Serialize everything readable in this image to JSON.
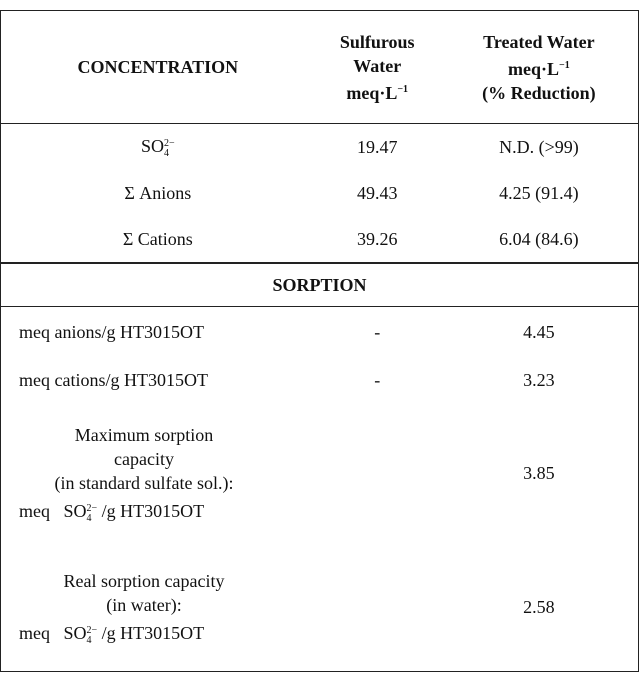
{
  "table": {
    "header": [
      {
        "lines": [
          "CONCENTRATION"
        ]
      },
      {
        "lines": [
          "Sulfurous",
          "Water"
        ],
        "unit": "meq·L",
        "unit_exp": "−1"
      },
      {
        "lines": [
          "Treated Water"
        ],
        "unit": "meq·L",
        "unit_exp": "−1",
        "note": "(% Reduction)"
      }
    ],
    "concentration_rows": [
      {
        "label": {
          "base": "SO",
          "sub": "4",
          "sup": "2−"
        },
        "sulfurous": 19.47,
        "treated": "N.D. (>99)"
      },
      {
        "label": "Σ Anions",
        "sulfurous": 49.43,
        "treated": "4.25 (91.4)"
      },
      {
        "label": "Σ Cations",
        "sulfurous": 39.26,
        "treated": "6.04 (84.6)"
      }
    ],
    "section": "SORPTION",
    "sorption_rows": [
      {
        "label": "meq anions/g HT3015OT",
        "sulfurous": "-",
        "treated": 4.45
      },
      {
        "label": "meq cations/g HT3015OT",
        "sulfurous": "-",
        "treated": 3.23
      },
      {
        "lines": [
          "Maximum sorption",
          "capacity",
          "(in standard sulfate sol.):"
        ],
        "prefix": "meq",
        "formula": {
          "base": "SO",
          "sub": "4",
          "sup": "2−"
        },
        "suffix": "/g HT3015OT",
        "treated": 3.85
      },
      {
        "lines": [
          "Real sorption capacity",
          "(in water):"
        ],
        "prefix": "meq",
        "formula": {
          "base": "SO",
          "sub": "4",
          "sup": "2−"
        },
        "suffix": "/g HT3015OT",
        "treated": 2.58
      }
    ]
  }
}
